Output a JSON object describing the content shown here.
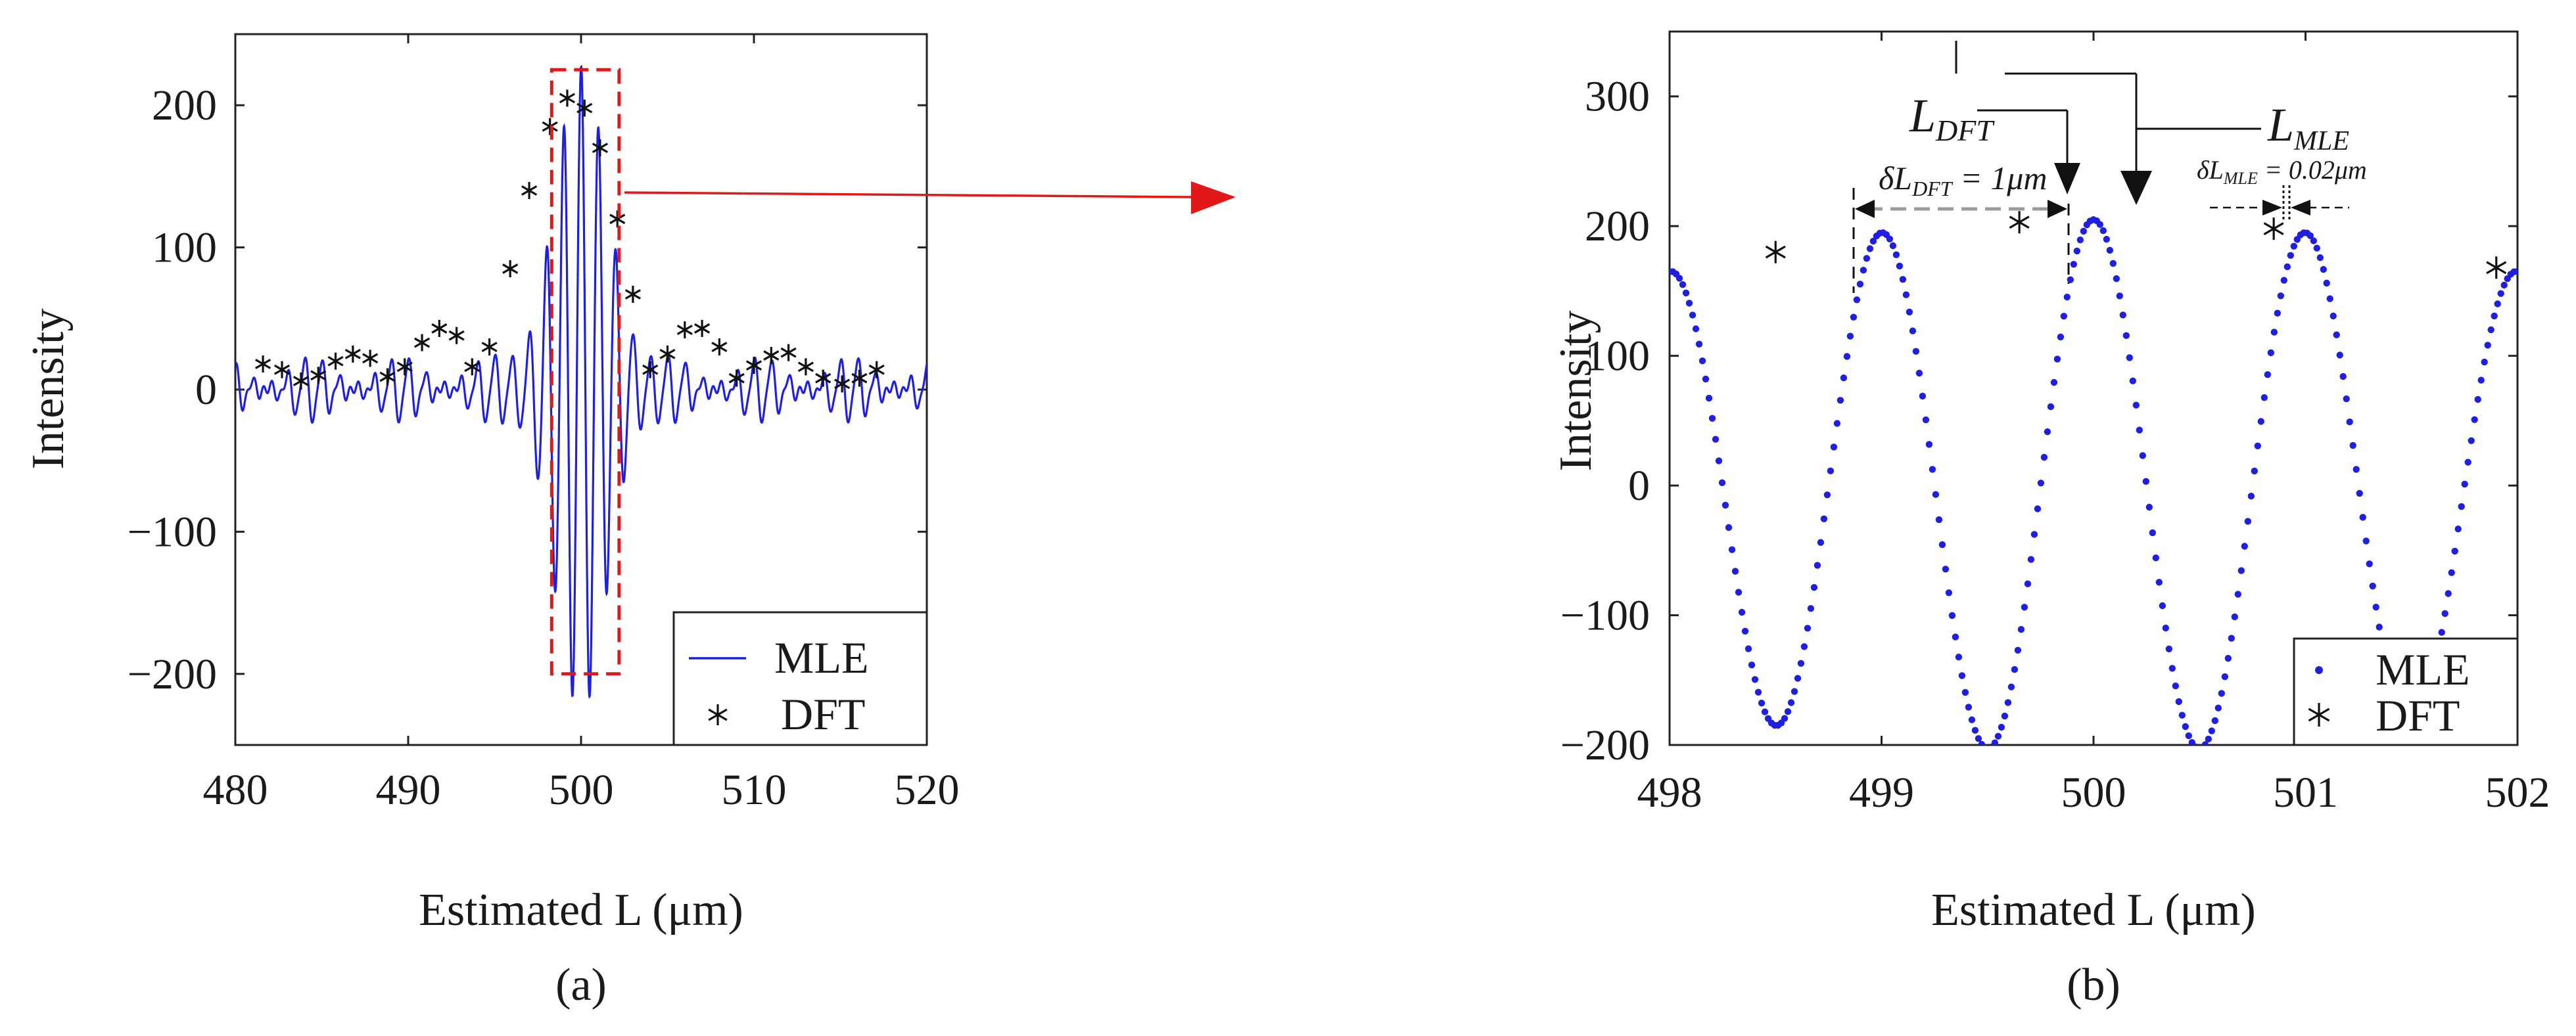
{
  "chart_data": [
    {
      "panel": "(a)",
      "type": "line",
      "xlabel": "Estimated L (μm)",
      "ylabel": "Intensity",
      "xlim": [
        480,
        520
      ],
      "ylim": [
        -250,
        250
      ],
      "xticks": [
        480,
        490,
        500,
        510,
        520
      ],
      "yticks": [
        -200,
        -100,
        0,
        100,
        200
      ],
      "ytick_labels": [
        "−200",
        "−100",
        "0",
        "100",
        "200"
      ],
      "legend_position": "bottom-right",
      "zoom_box": {
        "x": [
          498.3,
          502.2
        ],
        "y": [
          -200,
          225
        ]
      },
      "series": [
        {
          "name": "MLE",
          "style": "solid line",
          "color": "#1f1fe0",
          "model": {
            "center": 500,
            "period": 1,
            "peak": 205,
            "envelope_width": 1.6,
            "baseline_amp": 22
          }
        },
        {
          "name": "DFT",
          "style": "asterisk markers",
          "color": "#111111",
          "points": [
            [
              481.6,
              18
            ],
            [
              482.7,
              14
            ],
            [
              483.8,
              6
            ],
            [
              484.8,
              10
            ],
            [
              485.8,
              20
            ],
            [
              486.8,
              25
            ],
            [
              487.8,
              22
            ],
            [
              488.8,
              9
            ],
            [
              489.8,
              16
            ],
            [
              490.8,
              33
            ],
            [
              491.8,
              43
            ],
            [
              492.8,
              38
            ],
            [
              493.7,
              16
            ],
            [
              494.7,
              30
            ],
            [
              495.9,
              85
            ],
            [
              497.0,
              140
            ],
            [
              498.2,
              185
            ],
            [
              499.2,
              205
            ],
            [
              500.2,
              198
            ],
            [
              501.1,
              170
            ],
            [
              502.1,
              120
            ],
            [
              503.0,
              67
            ],
            [
              504.0,
              14
            ],
            [
              505.0,
              25
            ],
            [
              506.0,
              42
            ],
            [
              507.0,
              43
            ],
            [
              508.0,
              30
            ],
            [
              509.0,
              8
            ],
            [
              510.0,
              17
            ],
            [
              511.0,
              24
            ],
            [
              512.0,
              26
            ],
            [
              513.0,
              16
            ],
            [
              514.0,
              8
            ],
            [
              515.1,
              4
            ],
            [
              516.1,
              8
            ],
            [
              517.1,
              14
            ]
          ]
        }
      ]
    },
    {
      "panel": "(b)",
      "type": "scatter",
      "xlabel": "Estimated L (μm)",
      "ylabel": "Intensity",
      "xlim": [
        498,
        502
      ],
      "ylim": [
        -200,
        350
      ],
      "xticks": [
        498,
        499,
        500,
        501,
        502
      ],
      "yticks": [
        -200,
        -100,
        0,
        100,
        200,
        300
      ],
      "ytick_labels": [
        "−200",
        "−100",
        "0",
        "100",
        "200",
        "300"
      ],
      "legend_position": "bottom-right",
      "series": [
        {
          "name": "MLE",
          "style": "dotted markers",
          "color": "#1f1fe0",
          "model": {
            "period": 1,
            "peak_x": [
              498.05,
              499.05,
              500.0,
              501.0,
              501.95
            ],
            "peak_y": [
              165,
              195,
              205,
              195,
              165
            ],
            "trough_y": [
              -185,
              -205,
              -205,
              -185
            ]
          }
        },
        {
          "name": "DFT",
          "style": "asterisk markers",
          "color": "#111111",
          "points": [
            [
              498.5,
              180
            ],
            [
              499.65,
              203
            ],
            [
              500.85,
              198
            ],
            [
              501.9,
              168
            ]
          ]
        }
      ],
      "annotations": {
        "l_dft": "L",
        "l_dft_sub": "DFT",
        "l_mle": "L",
        "l_mle_sub": "MLE",
        "delta_dft_pre": "δL",
        "delta_dft_sub": "DFT",
        "delta_dft_post": " = 1μm",
        "delta_mle_pre": "δL",
        "delta_mle_sub": "MLE",
        "delta_mle_post": " = 0.02μm"
      }
    }
  ]
}
